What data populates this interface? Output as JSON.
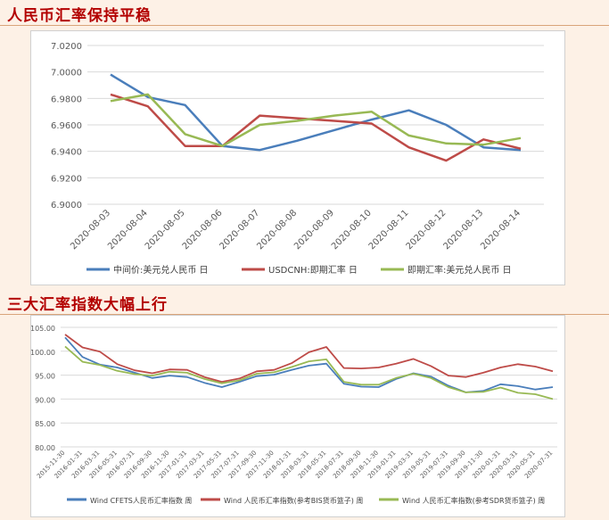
{
  "sections": [
    {
      "title": "人民币汇率保持平稳"
    },
    {
      "title": "三大汇率指数大幅上行"
    }
  ],
  "chart_data": [
    {
      "type": "line",
      "x": [
        "2020-08-03",
        "2020-08-04",
        "2020-08-05",
        "2020-08-06",
        "2020-08-07",
        "2020-08-08",
        "2020-08-09",
        "2020-08-10",
        "2020-08-11",
        "2020-08-12",
        "2020-08-13",
        "2020-08-14"
      ],
      "ylim": [
        6.9,
        7.02
      ],
      "yticks": [
        "7.0200",
        "7.0000",
        "6.9800",
        "6.9600",
        "6.9400",
        "6.9200",
        "6.9000"
      ],
      "grid": true,
      "legend_position": "bottom",
      "series": [
        {
          "name": "中间价:美元兑人民币 日",
          "color": "#4a7ebb",
          "values": [
            6.998,
            6.981,
            6.975,
            6.944,
            6.941,
            6.948,
            6.956,
            6.964,
            6.971,
            6.96,
            6.943,
            6.941
          ]
        },
        {
          "name": "USDCNH:即期汇率 日",
          "color": "#be4b48",
          "values": [
            6.983,
            6.974,
            6.944,
            6.944,
            6.967,
            6.965,
            6.963,
            6.961,
            6.943,
            6.933,
            6.949,
            6.942
          ]
        },
        {
          "name": "即期汇率:美元兑人民币 日",
          "color": "#98b954",
          "values": [
            6.978,
            6.983,
            6.953,
            6.944,
            6.96,
            6.963,
            6.967,
            6.97,
            6.952,
            6.946,
            6.945,
            6.95
          ]
        }
      ]
    },
    {
      "type": "line",
      "x": [
        "2015-11-30",
        "2016-01-31",
        "2016-03-31",
        "2016-05-31",
        "2016-07-31",
        "2016-09-30",
        "2016-11-30",
        "2017-01-31",
        "2017-03-31",
        "2017-05-31",
        "2017-07-31",
        "2017-09-30",
        "2017-11-30",
        "2018-01-31",
        "2018-03-31",
        "2018-05-31",
        "2018-07-31",
        "2018-09-30",
        "2018-11-30",
        "2019-01-31",
        "2019-03-31",
        "2019-05-31",
        "2019-07-31",
        "2019-09-30",
        "2019-11-30",
        "2020-01-31",
        "2020-03-31",
        "2020-05-31",
        "2020-07-31"
      ],
      "ylim": [
        80,
        105
      ],
      "yticks": [
        "105.00",
        "100.00",
        "95.00",
        "90.00",
        "85.00",
        "80.00"
      ],
      "grid": true,
      "legend_position": "bottom",
      "series": [
        {
          "name": "Wind CFETS人民币汇率指数 周",
          "color": "#4a7ebb",
          "values": [
            102.9,
            98.8,
            97.2,
            96.6,
            95.5,
            94.4,
            94.9,
            94.6,
            93.4,
            92.5,
            93.6,
            94.8,
            95.1,
            96.1,
            97.0,
            97.4,
            93.2,
            92.6,
            92.5,
            94.2,
            95.4,
            94.7,
            92.8,
            91.4,
            91.7,
            93.1,
            92.7,
            92.0,
            92.5
          ]
        },
        {
          "name": "Wind 人民币汇率指数(参考BIS货币篮子) 周",
          "color": "#be4b48",
          "values": [
            103.5,
            100.8,
            99.9,
            97.3,
            96.0,
            95.4,
            96.2,
            96.1,
            94.6,
            93.6,
            94.3,
            95.8,
            96.1,
            97.5,
            99.8,
            100.9,
            96.5,
            96.4,
            96.6,
            97.4,
            98.4,
            96.9,
            94.9,
            94.6,
            95.5,
            96.6,
            97.3,
            96.8,
            95.8
          ]
        },
        {
          "name": "Wind 人民币汇率指数(参考SDR货币篮子) 周",
          "color": "#98b954",
          "values": [
            101.0,
            97.8,
            97.1,
            95.9,
            95.2,
            94.9,
            95.7,
            95.5,
            94.2,
            93.3,
            93.9,
            95.3,
            95.6,
            96.7,
            97.9,
            98.3,
            93.6,
            93.0,
            93.0,
            94.4,
            95.3,
            94.4,
            92.5,
            91.4,
            91.5,
            92.4,
            91.3,
            91.0,
            90.0
          ]
        }
      ]
    }
  ]
}
